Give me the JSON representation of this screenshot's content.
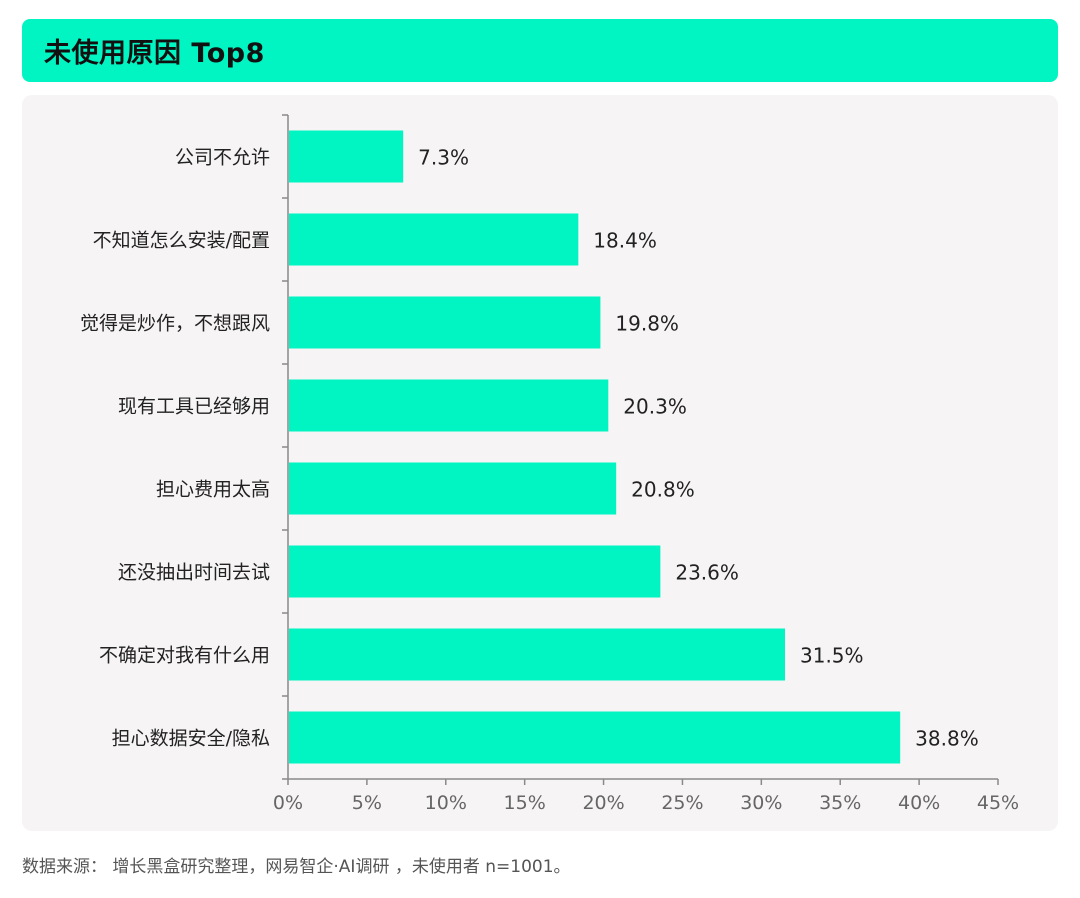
{
  "header": {
    "title": "未使用原因 Top8"
  },
  "footer": {
    "source": "数据来源： 增长黑盒研究整理，网易智企·AI调研 ，未使用者 n=1001。"
  },
  "colors": {
    "accent": "#00f5c3",
    "panel": "#f6f4f5",
    "axis": "#8a8a8a"
  },
  "chart_data": {
    "type": "bar",
    "orientation": "horizontal",
    "title": "未使用原因 Top8",
    "categories": [
      "公司不允许",
      "不知道怎么安装/配置",
      "觉得是炒作，不想跟风",
      "现有工具已经够用",
      "担心费用太高",
      "还没抽出时间去试",
      "不确定对我有什么用",
      "担心数据安全/隐私"
    ],
    "values": [
      7.3,
      18.4,
      19.8,
      20.3,
      20.8,
      23.6,
      31.5,
      38.8
    ],
    "value_labels": [
      "7.3%",
      "18.4%",
      "19.8%",
      "20.3%",
      "20.8%",
      "23.6%",
      "31.5%",
      "38.8%"
    ],
    "xlim": [
      0,
      45
    ],
    "xticks": [
      0,
      5,
      10,
      15,
      20,
      25,
      30,
      35,
      40,
      45
    ],
    "xtick_labels": [
      "0%",
      "5%",
      "10%",
      "15%",
      "20%",
      "25%",
      "30%",
      "35%",
      "40%",
      "45%"
    ],
    "xlabel": "",
    "ylabel": "",
    "grid": false,
    "legend": "none"
  }
}
